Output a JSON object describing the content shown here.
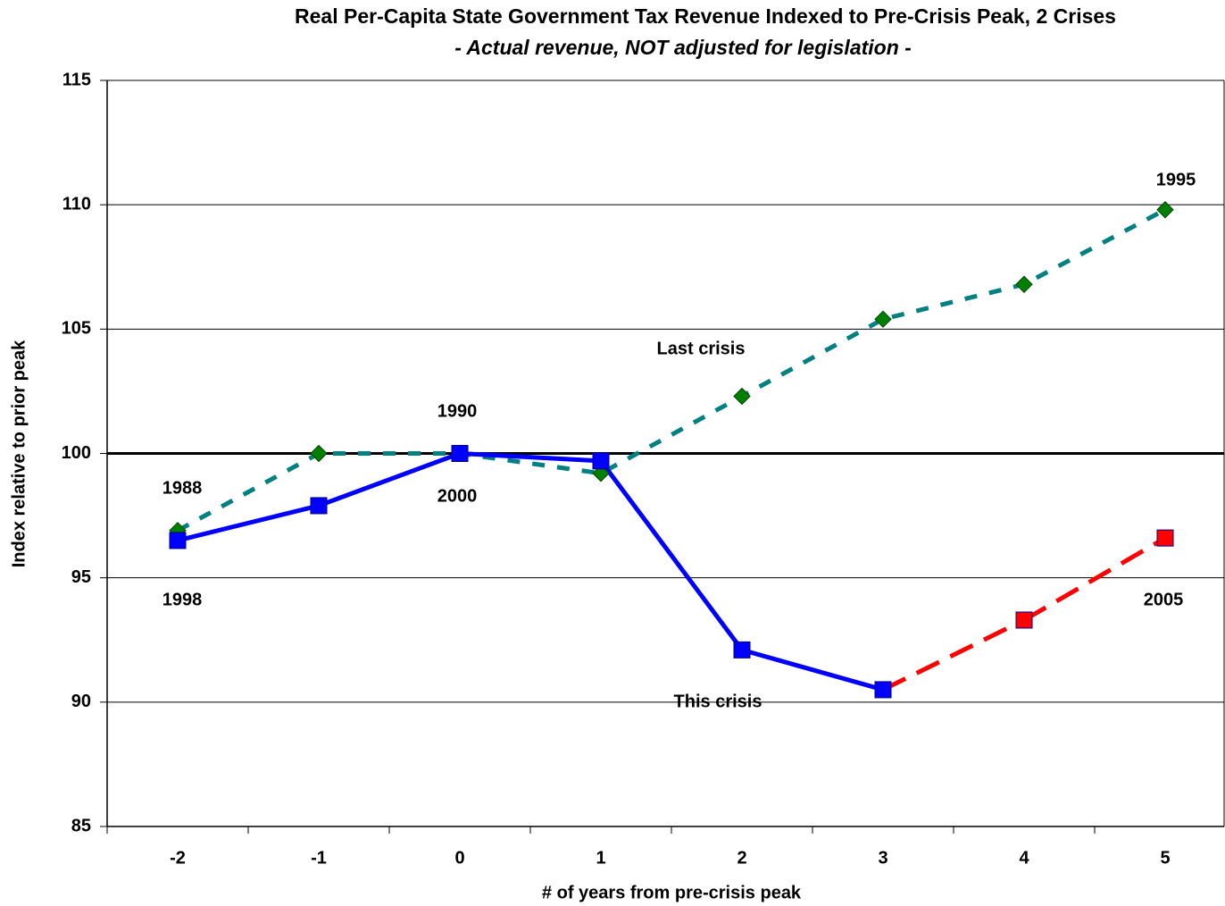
{
  "chart_data": {
    "type": "line",
    "title": "Real Per-Capita State Government Tax Revenue Indexed to Pre-Crisis Peak, 2 Crises",
    "subtitle": "- Actual revenue, NOT adjusted for legislation -",
    "x_label": "# of years from pre-crisis peak",
    "y_label": "Index relative to prior peak",
    "categories": [
      "-2",
      "-1",
      "0",
      "1",
      "2",
      "3",
      "4",
      "5"
    ],
    "series": [
      {
        "name": "Last crisis",
        "color": "#008080",
        "marker_color": "#008000",
        "marker": "diamond",
        "dashed": true,
        "values": [
          96.9,
          100.0,
          100.0,
          99.2,
          102.3,
          105.4,
          106.8,
          109.8
        ]
      },
      {
        "name": "This crisis",
        "color": "#0000ff",
        "marker": "square",
        "dashed": false,
        "point_colors": [
          "#0000ff",
          "#0000ff",
          "#0000ff",
          "#0000ff",
          "#0000ff",
          "#0000ff",
          "#ff0000",
          "#ff0000"
        ],
        "values": [
          96.5,
          97.9,
          100.0,
          99.7,
          92.1,
          90.5,
          93.3,
          96.6
        ]
      }
    ],
    "annotations": [
      "1988",
      "1998",
      "1990",
      "2000",
      "1995",
      "2005"
    ],
    "reference_line": 100,
    "ylim": [
      85,
      115
    ],
    "yticks": [
      85,
      90,
      95,
      100,
      105,
      110,
      115
    ],
    "grid": true
  }
}
